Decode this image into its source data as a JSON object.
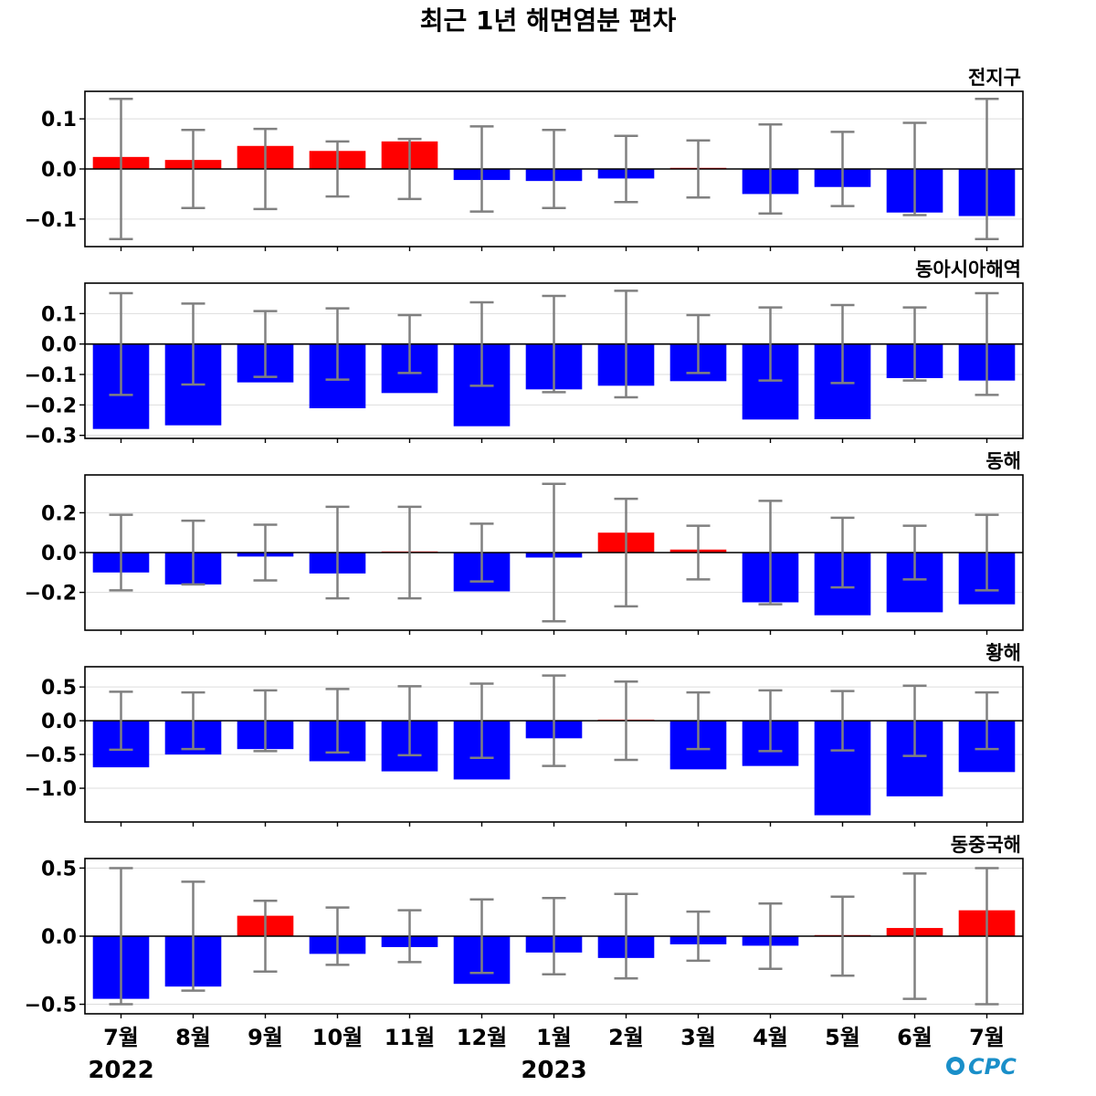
{
  "title": "최근 1년 해면염분 편차",
  "logo_text": "CPC",
  "colors": {
    "positive": "#ff0000",
    "negative": "#0000ff",
    "error_bar": "#808080",
    "grid": "#dddddd",
    "zero_line": "#000000",
    "logo": "#1a8fc9"
  },
  "chart_data": {
    "type": "bar",
    "categories": [
      "7월",
      "8월",
      "9월",
      "10월",
      "11월",
      "12월",
      "1월",
      "2월",
      "3월",
      "4월",
      "5월",
      "6월",
      "7월"
    ],
    "year_labels": [
      {
        "label": "2022",
        "category_index": 0
      },
      {
        "label": "2023",
        "category_index": 6
      }
    ],
    "panels": [
      {
        "name": "전지구",
        "ylim": [
          -0.155,
          0.155
        ],
        "yticks": [
          {
            "v": 0.1,
            "label": "0.1"
          },
          {
            "v": 0.0,
            "label": "0.0"
          },
          {
            "v": -0.1,
            "label": "−0.1"
          }
        ],
        "values": [
          0.024,
          0.018,
          0.046,
          0.036,
          0.055,
          -0.022,
          -0.024,
          -0.019,
          0.002,
          -0.05,
          -0.036,
          -0.087,
          -0.094
        ],
        "errors": [
          0.14,
          0.078,
          0.08,
          0.055,
          0.06,
          0.085,
          0.078,
          0.066,
          0.057,
          0.089,
          0.074,
          0.092,
          0.14
        ]
      },
      {
        "name": "동아시아해역",
        "ylim": [
          -0.31,
          0.2
        ],
        "yticks": [
          {
            "v": 0.1,
            "label": "0.1"
          },
          {
            "v": 0.0,
            "label": "0.0"
          },
          {
            "v": -0.1,
            "label": "−0.1"
          },
          {
            "v": -0.2,
            "label": "−0.2"
          },
          {
            "v": -0.3,
            "label": "−0.3"
          }
        ],
        "values": [
          -0.279,
          -0.267,
          -0.126,
          -0.211,
          -0.161,
          -0.27,
          -0.149,
          -0.137,
          -0.122,
          -0.248,
          -0.247,
          -0.112,
          -0.12
        ],
        "errors": [
          0.167,
          0.133,
          0.108,
          0.117,
          0.095,
          0.137,
          0.158,
          0.175,
          0.095,
          0.12,
          0.128,
          0.12,
          0.167
        ]
      },
      {
        "name": "동해",
        "ylim": [
          -0.39,
          0.39
        ],
        "yticks": [
          {
            "v": 0.2,
            "label": "0.2"
          },
          {
            "v": 0.0,
            "label": "0.0"
          },
          {
            "v": -0.2,
            "label": "−0.2"
          }
        ],
        "values": [
          -0.1,
          -0.16,
          -0.02,
          -0.105,
          0.005,
          -0.195,
          -0.025,
          0.1,
          0.015,
          -0.25,
          -0.315,
          -0.3,
          -0.26
        ],
        "errors": [
          0.19,
          0.16,
          0.14,
          0.23,
          0.23,
          0.145,
          0.345,
          0.27,
          0.135,
          0.26,
          0.175,
          0.135,
          0.19
        ]
      },
      {
        "name": "황해",
        "ylim": [
          -1.5,
          0.8
        ],
        "yticks": [
          {
            "v": 0.5,
            "label": "0.5"
          },
          {
            "v": 0.0,
            "label": "0.0"
          },
          {
            "v": -0.5,
            "label": "−0.5"
          },
          {
            "v": -1.0,
            "label": "−1.0"
          }
        ],
        "values": [
          -0.69,
          -0.5,
          -0.42,
          -0.6,
          -0.75,
          -0.87,
          -0.26,
          0.01,
          -0.72,
          -0.67,
          -1.4,
          -1.12,
          -0.76
        ],
        "errors": [
          0.43,
          0.42,
          0.45,
          0.47,
          0.51,
          0.55,
          0.67,
          0.58,
          0.42,
          0.45,
          0.44,
          0.52,
          0.42
        ]
      },
      {
        "name": "동중국해",
        "ylim": [
          -0.57,
          0.57
        ],
        "yticks": [
          {
            "v": 0.5,
            "label": "0.5"
          },
          {
            "v": 0.0,
            "label": "0.0"
          },
          {
            "v": -0.5,
            "label": "−0.5"
          }
        ],
        "values": [
          -0.46,
          -0.37,
          0.15,
          -0.13,
          -0.08,
          -0.35,
          -0.12,
          -0.16,
          -0.06,
          -0.07,
          0.005,
          0.06,
          0.19
        ],
        "errors": [
          0.5,
          0.4,
          0.26,
          0.21,
          0.19,
          0.27,
          0.28,
          0.31,
          0.18,
          0.24,
          0.29,
          0.46,
          0.5
        ]
      }
    ]
  }
}
